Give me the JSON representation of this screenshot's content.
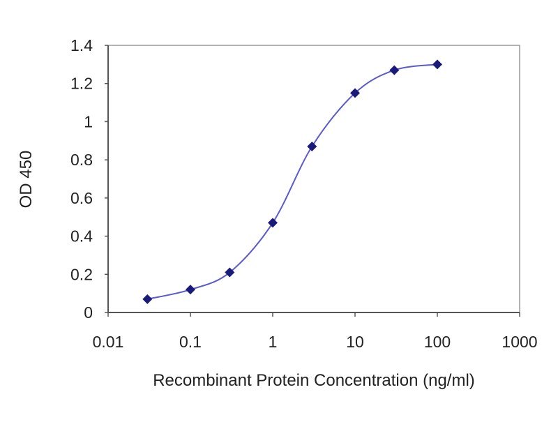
{
  "chart_data": {
    "type": "line",
    "title": "",
    "xlabel": "Recombinant Protein Concentration (ng/ml)",
    "ylabel": "OD 450",
    "xscale": "log",
    "xlim": [
      0.01,
      1000
    ],
    "ylim": [
      0,
      1.4
    ],
    "xticks": [
      "0.01",
      "0.1",
      "1",
      "10",
      "100",
      "1000"
    ],
    "yticks": [
      "0",
      "0.2",
      "0.4",
      "0.6",
      "0.8",
      "1",
      "1.2",
      "1.4"
    ],
    "grid": "horizontal",
    "legend": "none",
    "series": [
      {
        "x": [
          0.03,
          0.1,
          0.3,
          1,
          3,
          10,
          30,
          100
        ],
        "y": [
          0.07,
          0.12,
          0.21,
          0.47,
          0.87,
          1.15,
          1.27,
          1.3
        ],
        "color": "#1a1a7a",
        "line_color": "#5a5acf",
        "marker": "diamond",
        "smooth": true
      }
    ]
  }
}
